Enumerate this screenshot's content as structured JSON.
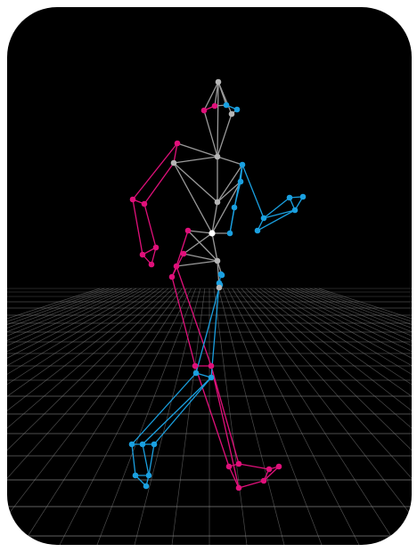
{
  "viewer": {
    "background": "#000000",
    "grid_color": "#8a8a8a",
    "colors": {
      "center": "#9a9a9a",
      "left": "#e0107a",
      "right": "#1aa0e0"
    }
  },
  "pose": {
    "joints": [
      {
        "id": "head_top",
        "side": "center"
      },
      {
        "id": "head_left",
        "side": "left"
      },
      {
        "id": "head_mid",
        "side": "left"
      },
      {
        "id": "head_right",
        "side": "right"
      },
      {
        "id": "head_right_2",
        "side": "right"
      },
      {
        "id": "head_back",
        "side": "center"
      },
      {
        "id": "l_shoulder",
        "side": "left"
      },
      {
        "id": "l_shoulder_in",
        "side": "center"
      },
      {
        "id": "neck",
        "side": "center"
      },
      {
        "id": "r_shoulder",
        "side": "right"
      },
      {
        "id": "r_chest",
        "side": "right"
      },
      {
        "id": "sternum",
        "side": "center"
      },
      {
        "id": "l_elbow",
        "side": "left"
      },
      {
        "id": "l_elbow_2",
        "side": "left"
      },
      {
        "id": "l_wrist",
        "side": "left"
      },
      {
        "id": "l_hand",
        "side": "left"
      },
      {
        "id": "l_hand_2",
        "side": "left"
      },
      {
        "id": "r_elbow",
        "side": "right"
      },
      {
        "id": "r_elbow_2",
        "side": "right"
      },
      {
        "id": "r_wrist",
        "side": "right"
      },
      {
        "id": "r_hand",
        "side": "right"
      },
      {
        "id": "r_hand_2",
        "side": "right"
      },
      {
        "id": "r_hand_3",
        "side": "right"
      },
      {
        "id": "abdomen",
        "side": "center"
      },
      {
        "id": "l_waist",
        "side": "left"
      },
      {
        "id": "pelvis",
        "side": "center"
      },
      {
        "id": "r_waist",
        "side": "right"
      },
      {
        "id": "l_hip",
        "side": "left"
      },
      {
        "id": "l_hip_2",
        "side": "left"
      },
      {
        "id": "l_hip_3",
        "side": "left"
      },
      {
        "id": "r_hip",
        "side": "right"
      },
      {
        "id": "r_hip_2",
        "side": "right"
      },
      {
        "id": "r_hip_3",
        "side": "right"
      },
      {
        "id": "pelvis_low",
        "side": "center"
      },
      {
        "id": "l_knee",
        "side": "left"
      },
      {
        "id": "l_knee_2",
        "side": "left"
      },
      {
        "id": "r_knee",
        "side": "right"
      },
      {
        "id": "r_knee_2",
        "side": "right"
      },
      {
        "id": "r_ankle",
        "side": "right"
      },
      {
        "id": "r_ankle_2",
        "side": "right"
      },
      {
        "id": "r_ankle_3",
        "side": "right"
      },
      {
        "id": "r_heel",
        "side": "right"
      },
      {
        "id": "r_toe",
        "side": "right"
      },
      {
        "id": "r_toe_2",
        "side": "right"
      },
      {
        "id": "l_ankle",
        "side": "left"
      },
      {
        "id": "l_ankle_2",
        "side": "left"
      },
      {
        "id": "l_ankle_3",
        "side": "left"
      },
      {
        "id": "l_toe",
        "side": "left"
      },
      {
        "id": "l_toe_2",
        "side": "left"
      },
      {
        "id": "l_heel",
        "side": "left"
      }
    ]
  }
}
